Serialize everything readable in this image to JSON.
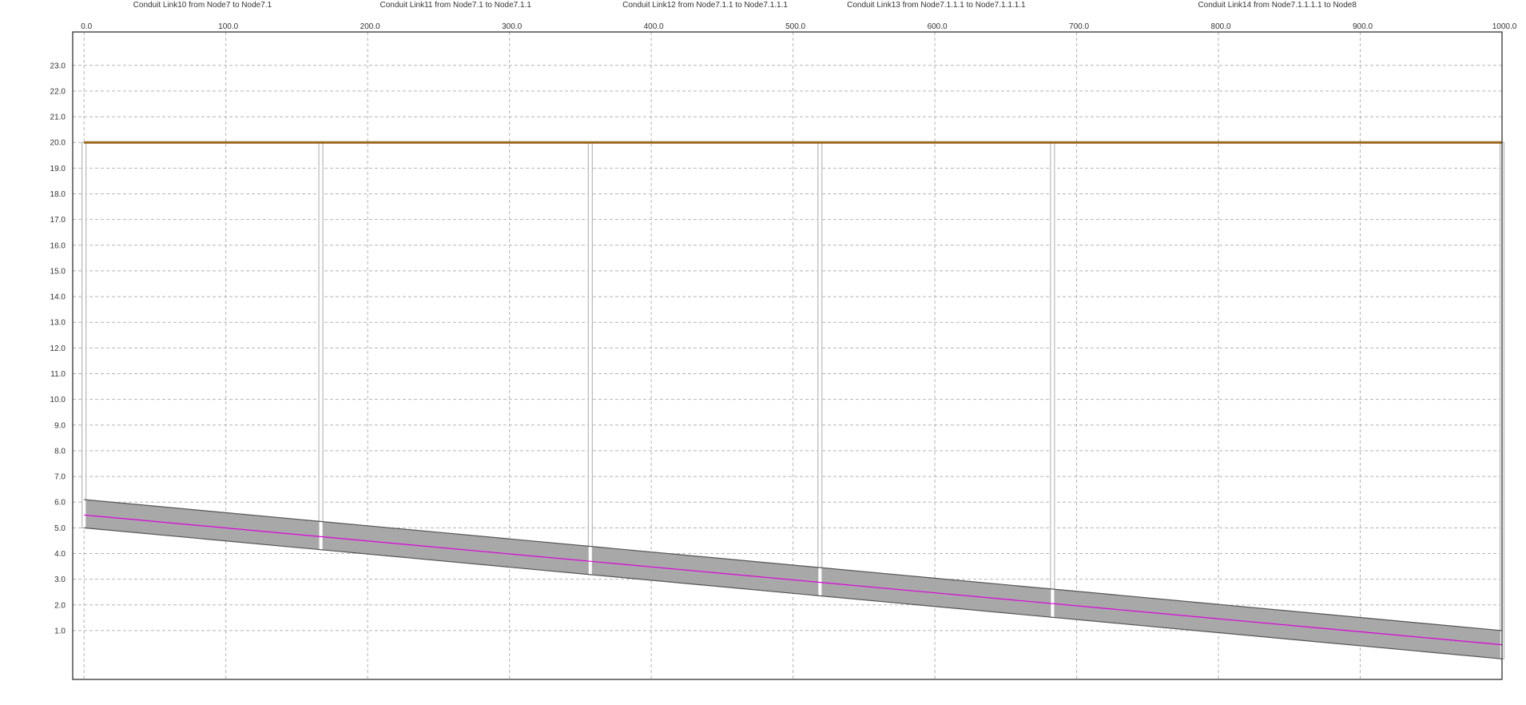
{
  "chart_data": {
    "type": "line",
    "title": "",
    "xlabel": "",
    "ylabel": "",
    "xlim": [
      -8,
      1000
    ],
    "ylim": [
      -0.9,
      24.3
    ],
    "grid": true,
    "x_ticks": [
      0,
      100,
      200,
      300,
      400,
      500,
      600,
      700,
      800,
      900,
      1000
    ],
    "x_tick_labels": [
      "0.0",
      "100.0",
      "200.0",
      "300.0",
      "400.0",
      "500.0",
      "600.0",
      "700.0",
      "800.0",
      "900.0",
      "1000.0"
    ],
    "y_ticks": [
      1,
      2,
      3,
      4,
      5,
      6,
      7,
      8,
      9,
      10,
      11,
      12,
      13,
      14,
      15,
      16,
      17,
      18,
      19,
      20,
      21,
      22,
      23
    ],
    "y_tick_labels": [
      "1.0",
      "2.0",
      "3.0",
      "4.0",
      "5.0",
      "6.0",
      "7.0",
      "8.0",
      "9.0",
      "10.0",
      "11.0",
      "12.0",
      "13.0",
      "14.0",
      "15.0",
      "16.0",
      "17.0",
      "18.0",
      "19.0",
      "20.0",
      "21.0",
      "22.0",
      "23.0"
    ],
    "conduits": [
      {
        "title": "Conduit Link10 from Node7 to Node7.1",
        "x_start": 0,
        "x_end": 167
      },
      {
        "title": "Conduit Link11 from Node7.1 to Node7.1.1",
        "x_start": 167,
        "x_end": 357
      },
      {
        "title": "Conduit Link12 from Node7.1.1 to Node7.1.1.1",
        "x_start": 357,
        "x_end": 519
      },
      {
        "title": "Conduit Link13 from Node7.1.1.1 to Node7.1.1.1.1",
        "x_start": 519,
        "x_end": 683
      },
      {
        "title": "Conduit Link14 from Node7.1.1.1.1 to Node8",
        "x_start": 683,
        "x_end": 1000
      }
    ],
    "nodes_x": [
      0,
      167,
      357,
      519,
      683,
      1000
    ],
    "series": [
      {
        "role": "ground",
        "color": "#9a6a1e",
        "x": [
          0,
          1000
        ],
        "y": [
          20.0,
          20.0
        ]
      },
      {
        "role": "crown",
        "color": "#555555",
        "x": [
          0,
          1000
        ],
        "y": [
          6.1,
          1.0
        ]
      },
      {
        "role": "invert",
        "color": "#555555",
        "x": [
          0,
          1000
        ],
        "y": [
          5.0,
          -0.1
        ]
      },
      {
        "role": "hgl",
        "color": "#dd00dd",
        "x": [
          0,
          1000
        ],
        "y": [
          5.5,
          0.45
        ]
      }
    ],
    "pipe_fill_color": "#a8a8a8",
    "manhole_color": "#aaaaaa"
  }
}
